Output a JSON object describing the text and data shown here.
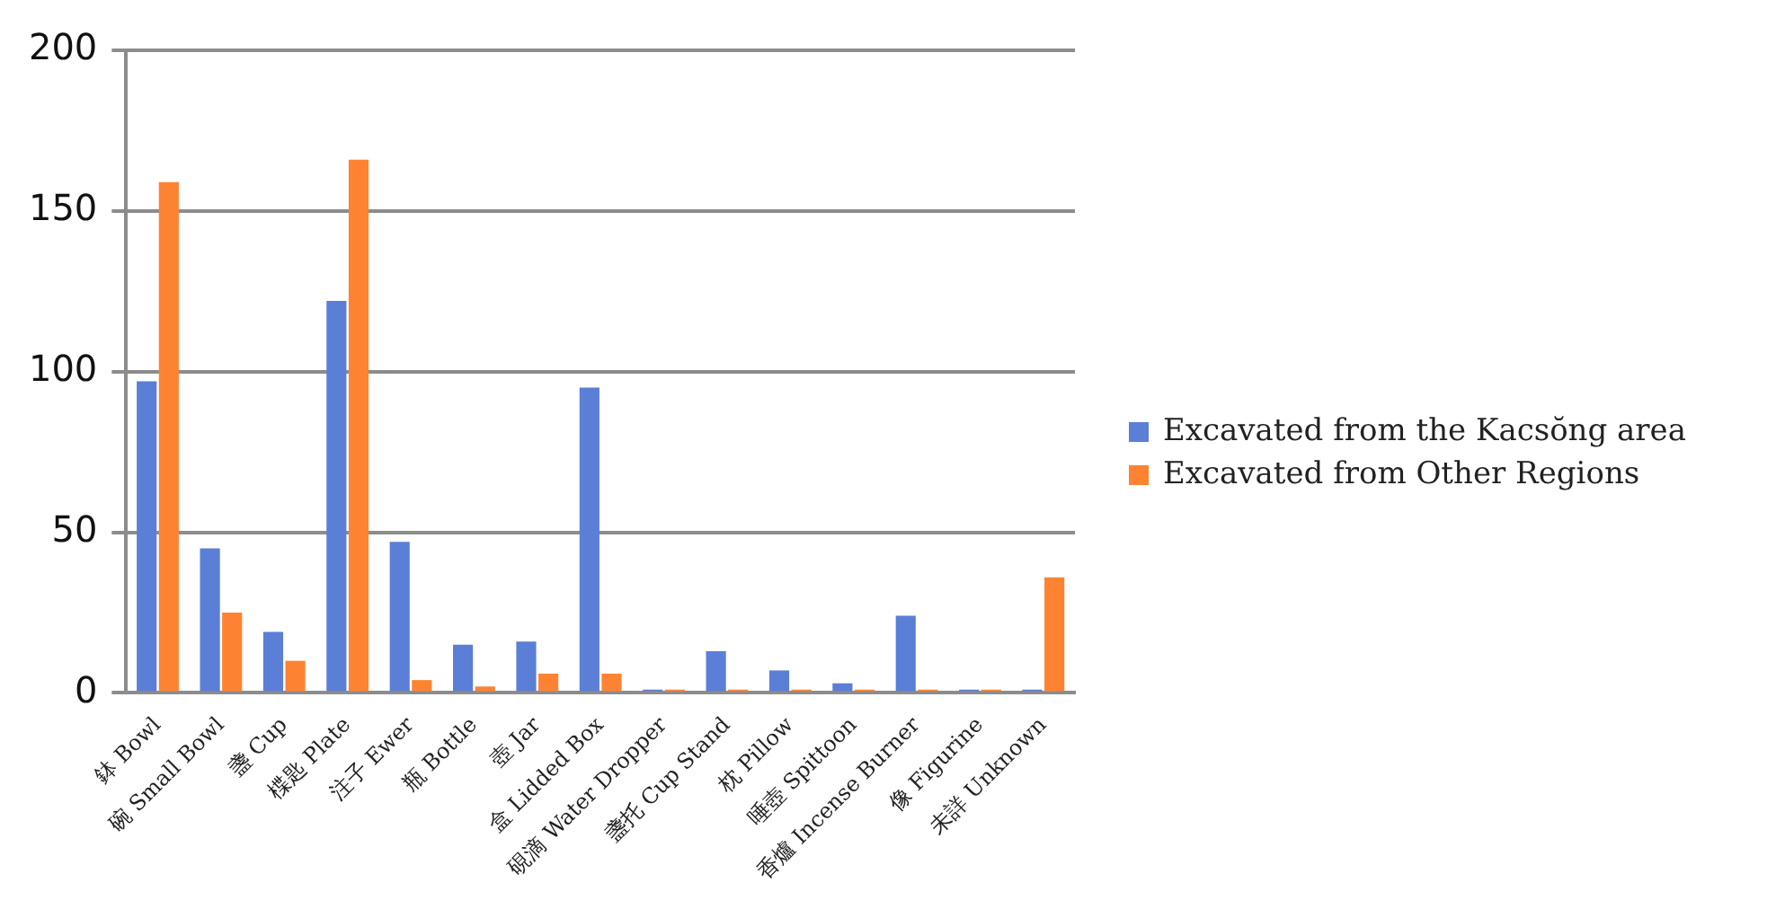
{
  "chart_data": {
    "type": "bar",
    "categories": [
      "鉢 Bowl",
      "碗 Small Bowl",
      "盞 Cup",
      "楪匙 Plate",
      "注子 Ewer",
      "瓶 Bottle",
      "壺 Jar",
      "盒 Lidded Box",
      "硯滴 Water Dropper",
      "盞托 Cup Stand",
      "枕 Pillow",
      "唾壺 Spittoon",
      "香爐 Incense Burner",
      "像 Figurine",
      "未詳 Unknown"
    ],
    "series": [
      {
        "name": "Excavated from the Kacsŏng area",
        "color": "#5b7fd6",
        "values": [
          97,
          45,
          19,
          122,
          47,
          15,
          16,
          95,
          1,
          13,
          7,
          3,
          24,
          1,
          1
        ]
      },
      {
        "name": "Excavated from Other Regions",
        "color": "#fd8333",
        "values": [
          159,
          25,
          10,
          166,
          4,
          2,
          6,
          6,
          1,
          1,
          1,
          1,
          1,
          1,
          36
        ]
      }
    ],
    "ylim": [
      0,
      200
    ],
    "yticks": [
      0,
      50,
      100,
      150,
      200
    ],
    "grid": "y",
    "legend": "right"
  }
}
